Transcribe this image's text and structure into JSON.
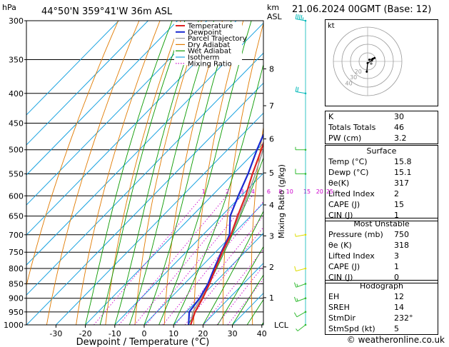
{
  "header": {
    "hpa": "hPa",
    "location": "44°50'N  359°41'W  36m  ASL",
    "km": "km",
    "asl": "ASL",
    "date": "21.06.2024  00GMT  (Base: 12)"
  },
  "axes": {
    "pressure_levels": [
      300,
      350,
      400,
      450,
      500,
      550,
      600,
      650,
      700,
      750,
      800,
      850,
      900,
      950,
      1000
    ],
    "temp_ticks": [
      -30,
      -20,
      -10,
      0,
      10,
      20,
      30,
      40
    ],
    "xlabel": "Dewpoint / Temperature (°C)",
    "ylabel_right": "Mixing Ratio (g/kg)",
    "km_ticks": [
      {
        "km": "1",
        "p": 898
      },
      {
        "km": "2",
        "p": 795
      },
      {
        "km": "3",
        "p": 703
      },
      {
        "km": "4",
        "p": 622
      },
      {
        "km": "5",
        "p": 548
      },
      {
        "km": "6",
        "p": 479
      },
      {
        "km": "7",
        "p": 420
      },
      {
        "km": "8",
        "p": 363
      }
    ],
    "lcl_label": "LCL",
    "mixing_ratio_labels": [
      "1",
      "2",
      "3",
      "4",
      "6",
      "8",
      "10",
      "15",
      "20",
      "25"
    ]
  },
  "legend": [
    "Temperature",
    "Dewpoint",
    "Parcel Trajectory",
    "Dry Adiabat",
    "Wet Adiabat",
    "Isotherm",
    "Mixing Ratio"
  ],
  "colors": {
    "temperature": "#dd2222",
    "dewpoint": "#1a2ad0",
    "parcel": "#999999",
    "dry_adiabat": "#e07a00",
    "wet_adiabat": "#0a9a00",
    "isotherm": "#1aa3e0",
    "mixing_ratio": "#cc00cc",
    "wind": "#00b8b8"
  },
  "chart_data": {
    "type": "line",
    "series": [
      {
        "name": "Temperature",
        "points": [
          [
            1000,
            15.8
          ],
          [
            950,
            13
          ],
          [
            900,
            11
          ],
          [
            850,
            8.5
          ],
          [
            800,
            5.5
          ],
          [
            750,
            2.3
          ],
          [
            700,
            -0.5
          ],
          [
            650,
            -4.5
          ],
          [
            600,
            -8.5
          ],
          [
            550,
            -13.5
          ],
          [
            500,
            -18.5
          ],
          [
            450,
            -24.5
          ],
          [
            400,
            -31.5
          ],
          [
            350,
            -40
          ],
          [
            300,
            -49
          ]
        ]
      },
      {
        "name": "Dewpoint",
        "points": [
          [
            1000,
            15.1
          ],
          [
            950,
            11
          ],
          [
            900,
            10
          ],
          [
            850,
            8
          ],
          [
            800,
            5
          ],
          [
            750,
            2
          ],
          [
            700,
            -1
          ],
          [
            650,
            -7
          ],
          [
            600,
            -11
          ],
          [
            550,
            -15
          ],
          [
            500,
            -20
          ],
          [
            450,
            -25
          ],
          [
            400,
            -32
          ],
          [
            350,
            -40.5
          ],
          [
            300,
            -50
          ]
        ]
      },
      {
        "name": "Parcel Trajectory",
        "points": [
          [
            1000,
            15.8
          ],
          [
            950,
            12.2
          ],
          [
            900,
            10.5
          ],
          [
            850,
            8.2
          ],
          [
            800,
            5.5
          ],
          [
            750,
            2.6
          ],
          [
            700,
            -0.4
          ],
          [
            650,
            -3.9
          ],
          [
            600,
            -7.9
          ],
          [
            550,
            -12.5
          ],
          [
            500,
            -17.9
          ],
          [
            450,
            -24
          ],
          [
            400,
            -31
          ],
          [
            350,
            -39.6
          ],
          [
            300,
            -49.5
          ]
        ]
      }
    ],
    "wind_barbs": [
      {
        "p": 1000,
        "dir": 232,
        "spd": 5
      },
      {
        "p": 950,
        "dir": 240,
        "spd": 10
      },
      {
        "p": 900,
        "dir": 250,
        "spd": 15
      },
      {
        "p": 850,
        "dir": 250,
        "spd": 15
      },
      {
        "p": 800,
        "dir": 255,
        "spd": 10
      },
      {
        "p": 700,
        "dir": 260,
        "spd": 5
      },
      {
        "p": 550,
        "dir": 270,
        "spd": 10
      },
      {
        "p": 500,
        "dir": 270,
        "spd": 5
      },
      {
        "p": 400,
        "dir": 280,
        "spd": 20
      },
      {
        "p": 300,
        "dir": 280,
        "spd": 45
      }
    ],
    "xlabel": "Dewpoint / Temperature (°C)",
    "ylabel": "hPa",
    "xlim": [
      -35,
      40
    ],
    "ylim": [
      1000,
      300
    ]
  },
  "hodograph": {
    "label": "kt",
    "rings": [
      "10",
      "20",
      "30",
      "40"
    ],
    "ring_labels": [
      "20",
      "30",
      "40"
    ],
    "points": [
      [
        2,
        -2
      ],
      [
        6,
        -3
      ],
      [
        8,
        -4
      ],
      [
        5,
        -1
      ],
      [
        0,
        2
      ],
      [
        -1,
        12
      ]
    ]
  },
  "indices": [
    {
      "label": "K",
      "value": "30"
    },
    {
      "label": "Totals Totals",
      "value": "46"
    },
    {
      "label": "PW (cm)",
      "value": "3.2"
    }
  ],
  "surface": {
    "title": "Surface",
    "rows": [
      {
        "label": "Temp (°C)",
        "value": "15.8"
      },
      {
        "label": "Dewp (°C)",
        "value": "15.1"
      },
      {
        "label": "θe(K)",
        "value": "317"
      },
      {
        "label": "Lifted Index",
        "value": "2"
      },
      {
        "label": "CAPE (J)",
        "value": "15"
      },
      {
        "label": "CIN (J)",
        "value": "1"
      }
    ]
  },
  "most_unstable": {
    "title": "Most Unstable",
    "rows": [
      {
        "label": "Pressure (mb)",
        "value": "750"
      },
      {
        "label": "θe (K)",
        "value": "318"
      },
      {
        "label": "Lifted Index",
        "value": "3"
      },
      {
        "label": "CAPE (J)",
        "value": "1"
      },
      {
        "label": "CIN (J)",
        "value": "0"
      }
    ]
  },
  "hodograph_table": {
    "title": "Hodograph",
    "rows": [
      {
        "label": "EH",
        "value": "12"
      },
      {
        "label": "SREH",
        "value": "14"
      },
      {
        "label": "StmDir",
        "value": "232°"
      },
      {
        "label": "StmSpd (kt)",
        "value": "5"
      }
    ]
  },
  "credit": "© weatheronline.co.uk"
}
